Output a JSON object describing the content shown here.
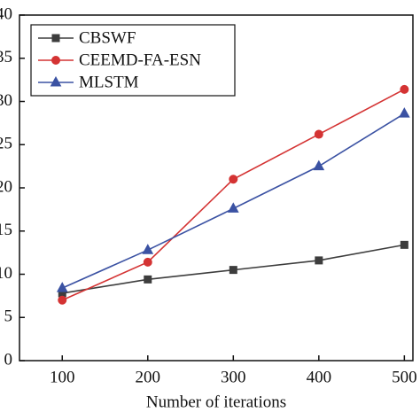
{
  "chart_data": {
    "type": "line",
    "x_label": "Number of iterations",
    "x": [
      100,
      200,
      300,
      400,
      500
    ],
    "series": [
      {
        "name": "CBSWF",
        "color": "#3d3d3d",
        "marker": "square",
        "values": [
          7.8,
          9.4,
          10.5,
          11.6,
          13.4
        ]
      },
      {
        "name": "CEEMD-FA-ESN",
        "color": "#d43333",
        "marker": "circle",
        "values": [
          7.0,
          11.4,
          21.0,
          26.2,
          31.4
        ]
      },
      {
        "name": "MLSTM",
        "color": "#3b52a3",
        "marker": "triangle",
        "values": [
          8.4,
          12.8,
          17.6,
          22.5,
          28.6
        ]
      }
    ],
    "xlim": [
      50,
      510
    ],
    "xticks": [
      100,
      200,
      300,
      400,
      500
    ],
    "ylim": [
      0,
      40
    ],
    "yticks": [
      0,
      5,
      10,
      15,
      20,
      25,
      30,
      35,
      40
    ],
    "legend_position": "upper left"
  }
}
